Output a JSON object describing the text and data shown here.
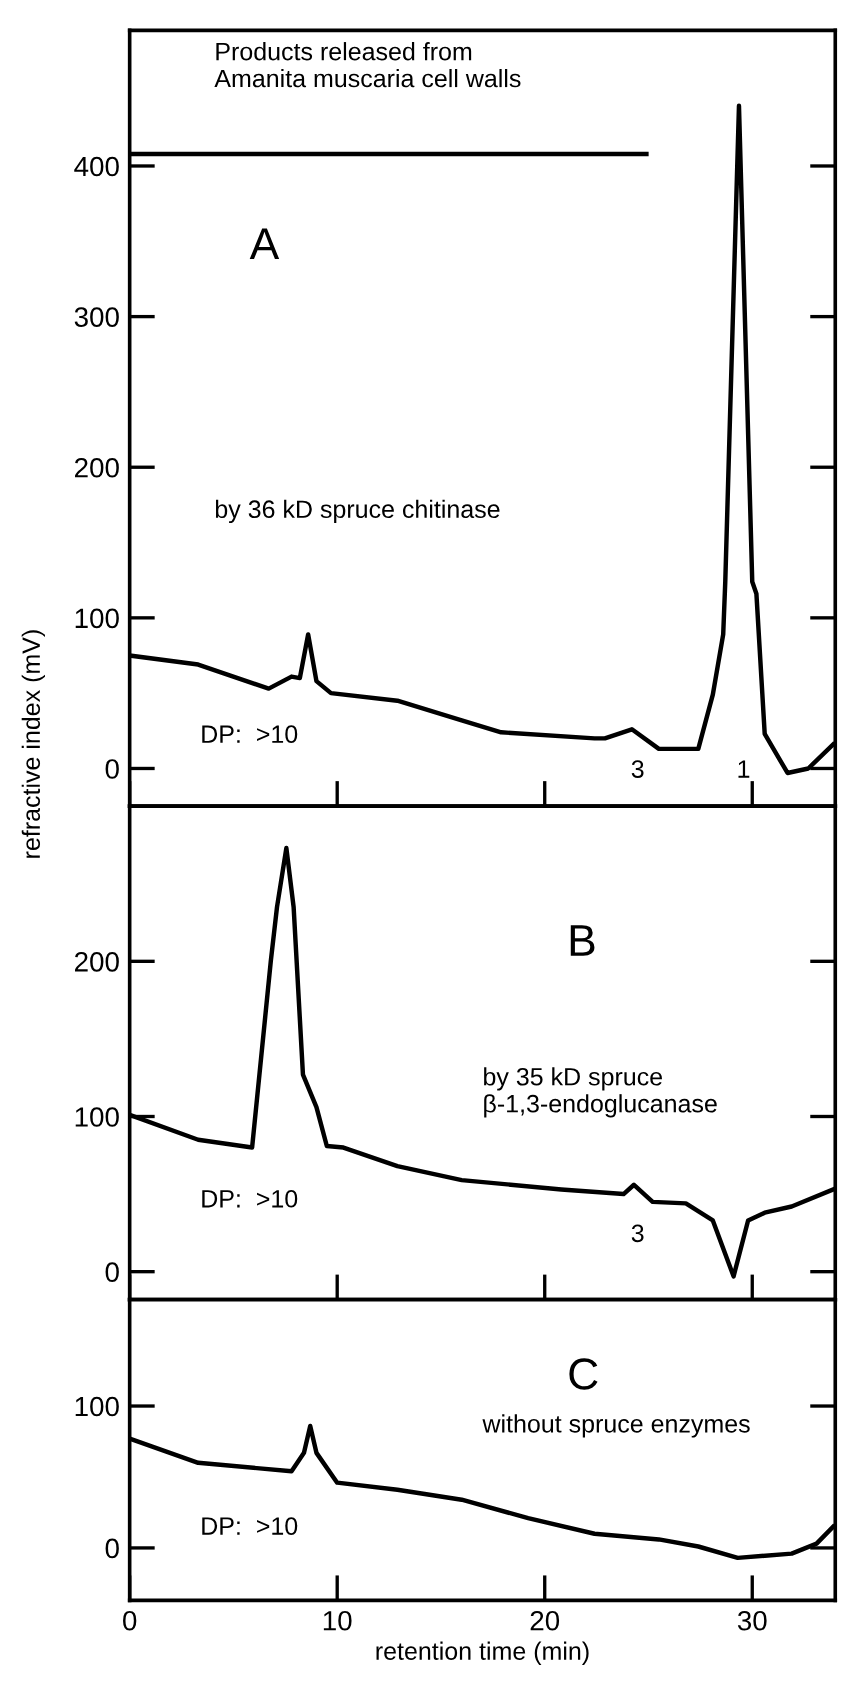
{
  "chart_data": [
    {
      "type": "line",
      "title": "Products released from\nAmanita muscaria cell walls",
      "ylabel": "refractive index (mV)",
      "series": [
        {
          "color": "#000000",
          "x": [
            0,
            3.3,
            6.7,
            7.8,
            8.2,
            8.6,
            9.0,
            9.7,
            12.9,
            16,
            17.9,
            22.4,
            22.9,
            24.2,
            25.5,
            27.4,
            28.1,
            28.6,
            28.7,
            29.36,
            30.0,
            30.2,
            30.6,
            31.7,
            32.7,
            33.9
          ],
          "values": [
            75,
            69,
            53,
            61,
            60,
            89,
            58,
            50,
            45,
            32,
            24,
            20,
            20,
            26,
            13,
            13,
            49,
            89,
            124,
            440,
            124,
            116,
            23,
            -3,
            0,
            16
          ]
        },
        {
          "color": "#000000",
          "x": [
            0,
            24.9
          ],
          "values": [
            408,
            408
          ]
        }
      ],
      "annotations": [
        "A",
        "by 36 kD spruce chitinase",
        "DP:  >10",
        "3",
        "1"
      ],
      "xlim": [
        0,
        34
      ],
      "xticks": [
        0,
        10,
        20,
        30
      ],
      "ylim": [
        -25,
        490
      ],
      "yticks": [
        0,
        100,
        200,
        300,
        400
      ],
      "tick_labels": "y",
      "grid": false,
      "legend": false
    },
    {
      "type": "line",
      "series": [
        {
          "color": "#000000",
          "x": [
            0,
            3.3,
            5.9,
            6.8,
            7.1,
            7.55,
            7.9,
            8.35,
            9.0,
            9.5,
            10.3,
            12.9,
            16,
            20.8,
            23.8,
            24.3,
            25.2,
            26.8,
            28.1,
            29.1,
            29.8,
            30.6,
            31.9,
            33.9
          ],
          "values": [
            101,
            85,
            80,
            200,
            235,
            273,
            235,
            127,
            106,
            81,
            80,
            68,
            59,
            53,
            50,
            56,
            45,
            44,
            33,
            -3,
            33,
            38,
            42,
            53
          ]
        }
      ],
      "annotations": [
        "B",
        "by 35 kD spruce\nβ-1,3-endoglucanase",
        "DP:  >10",
        "3"
      ],
      "xlim": [
        0,
        34
      ],
      "xticks": [
        0,
        10,
        20,
        30
      ],
      "ylim": [
        -18,
        300
      ],
      "yticks": [
        0,
        100,
        200
      ],
      "tick_labels": "y",
      "grid": false,
      "legend": false
    },
    {
      "type": "line",
      "xlabel": "retention time (min)",
      "series": [
        {
          "color": "#000000",
          "x": [
            0,
            3.3,
            7.8,
            8.4,
            8.7,
            9.0,
            10,
            12.9,
            16,
            19.2,
            22.4,
            25.5,
            27.4,
            29.3,
            31.9,
            33.1,
            33.9
          ],
          "values": [
            77,
            60,
            54,
            67,
            86,
            67,
            46,
            41,
            34,
            21,
            10,
            6,
            1,
            -7,
            -4,
            3,
            15
          ]
        }
      ],
      "annotations": [
        "C",
        "without spruce enzymes",
        "DP:  >10"
      ],
      "xlim": [
        0,
        34
      ],
      "xticks": [
        0,
        10,
        20,
        30
      ],
      "ylim": [
        -37,
        175
      ],
      "yticks": [
        0,
        100
      ],
      "grid": false,
      "legend": false
    }
  ]
}
